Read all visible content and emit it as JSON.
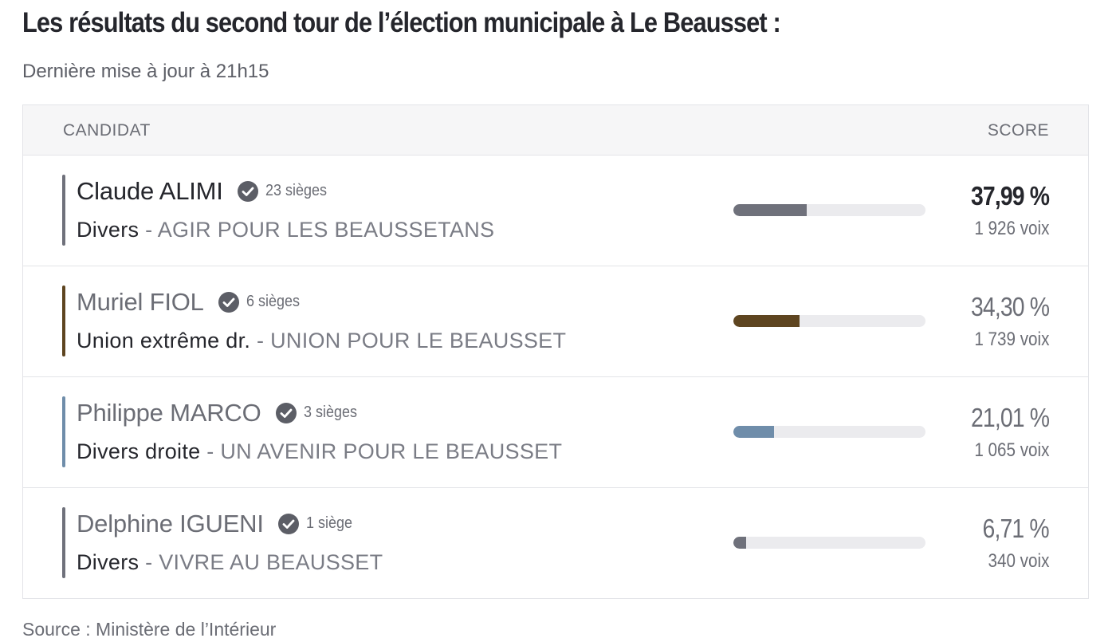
{
  "header": {
    "title": "Les résultats du second tour de l’élection municipale à Le Beausset :",
    "last_update": "Dernière mise à jour à 21h15"
  },
  "table": {
    "col_candidat": "CANDIDAT",
    "col_score": "SCORE",
    "rows": [
      {
        "name": "Claude ALIMI",
        "seats": "23 sièges",
        "nuance": "Divers",
        "separator": " - ",
        "liste": "AGIR POUR LES BEAUSSETANS",
        "score_pct": "37,99 %",
        "score_voix": "1 926 voix",
        "share": 37.99,
        "color": "#6f717b",
        "winner": true
      },
      {
        "name": "Muriel FIOL",
        "seats": "6 sièges",
        "nuance": "Union extrême dr.",
        "separator": " - ",
        "liste": "UNION POUR LE BEAUSSET",
        "score_pct": "34,30 %",
        "score_voix": "1 739 voix",
        "share": 34.3,
        "color": "#5e4520",
        "winner": false
      },
      {
        "name": "Philippe MARCO",
        "seats": "3 sièges",
        "nuance": "Divers droite",
        "separator": " - ",
        "liste": "UN AVENIR POUR LE BEAUSSET",
        "score_pct": "21,01 %",
        "score_voix": "1 065 voix",
        "share": 21.01,
        "color": "#6f8daa",
        "winner": false
      },
      {
        "name": "Delphine IGUENI",
        "seats": "1 siège",
        "nuance": "Divers",
        "separator": " - ",
        "liste": "VIVRE AU BEAUSSET",
        "score_pct": "6,71 %",
        "score_voix": "340 voix",
        "share": 6.71,
        "color": "#6f717b",
        "winner": false
      }
    ]
  },
  "footer": {
    "source": "Source : Ministère de l’Intérieur"
  }
}
